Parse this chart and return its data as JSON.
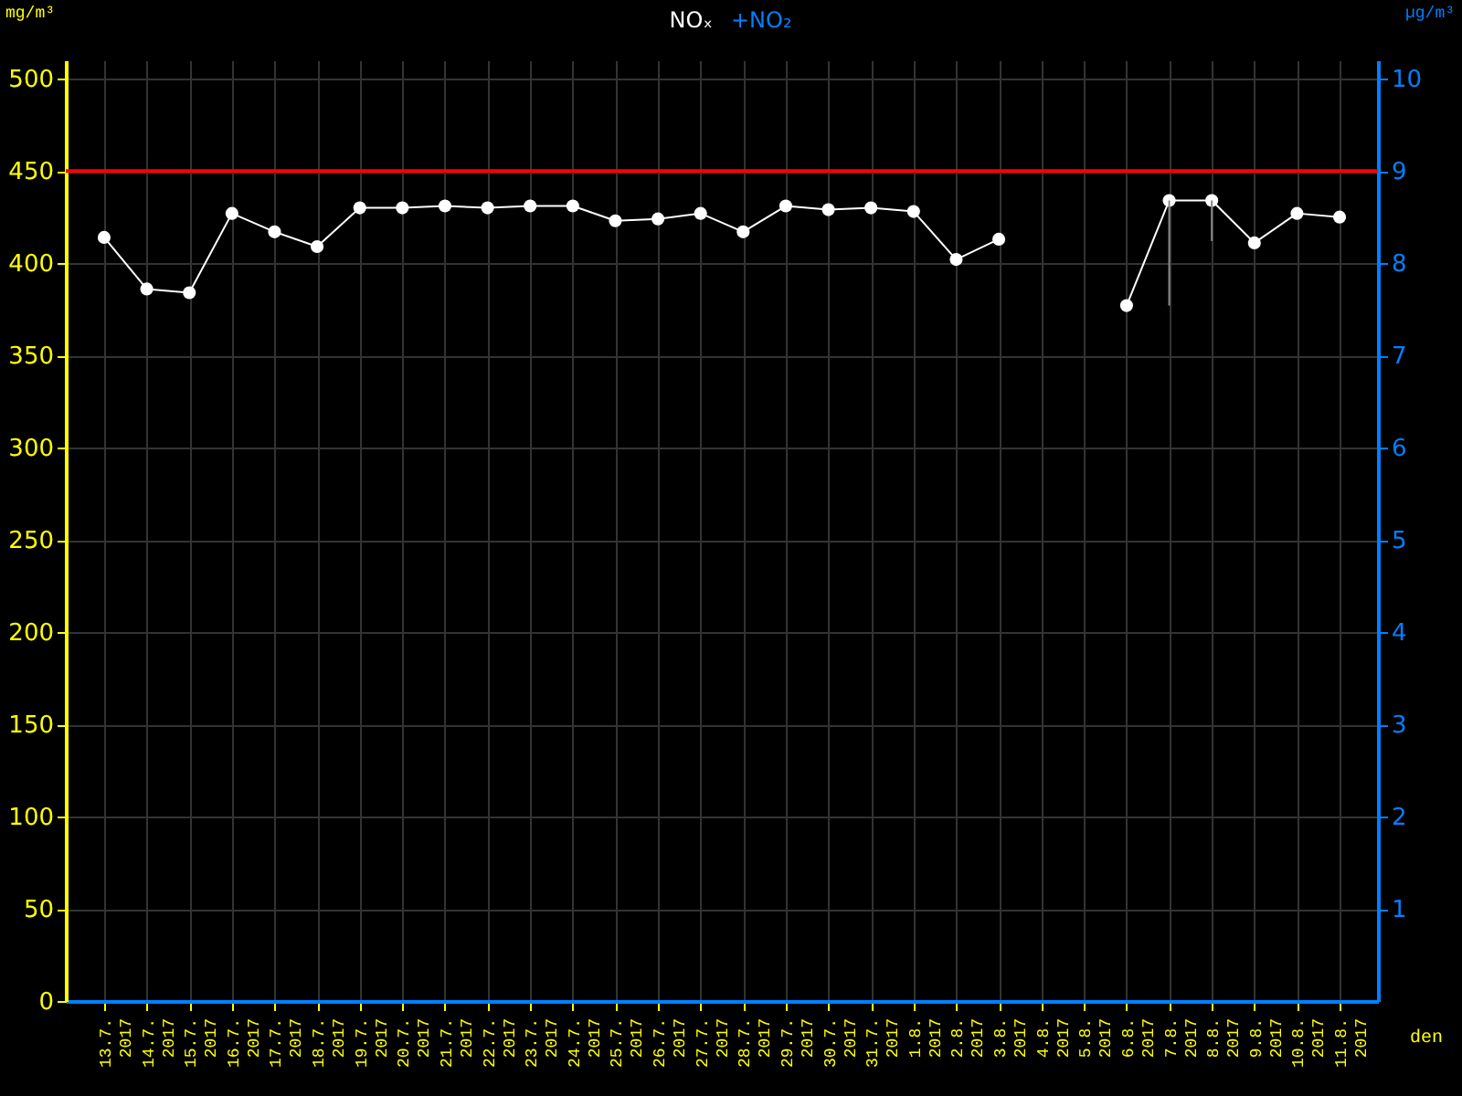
{
  "chart_data": {
    "type": "line",
    "title": "NOₓ",
    "subtitle": "+NO₂",
    "xlabel": "den",
    "ylabel": "mg/m³",
    "y2label": "µg/m³",
    "categories": [
      "13.7. 2017",
      "14.7. 2017",
      "15.7. 2017",
      "16.7. 2017",
      "17.7. 2017",
      "18.7. 2017",
      "19.7. 2017",
      "20.7. 2017",
      "21.7. 2017",
      "22.7. 2017",
      "23.7. 2017",
      "24.7. 2017",
      "25.7. 2017",
      "26.7. 2017",
      "27.7. 2017",
      "28.7. 2017",
      "29.7. 2017",
      "30.7. 2017",
      "31.7. 2017",
      "1.8. 2017",
      "2.8. 2017",
      "3.8. 2017",
      "4.8. 2017",
      "5.8. 2017",
      "6.8. 2017",
      "7.8. 2017",
      "8.8. 2017",
      "9.8. 2017",
      "10.8. 2017",
      "11.8. 2017"
    ],
    "series": [
      {
        "color": "#ffffff",
        "values": [
          414,
          386,
          384,
          427,
          417,
          409,
          430,
          430,
          431,
          430,
          431,
          431,
          423,
          424,
          427,
          417,
          431,
          429,
          430,
          428,
          402,
          413,
          null,
          null,
          377,
          434,
          434,
          411,
          427,
          425
        ],
        "errors": [
          null,
          null,
          null,
          null,
          null,
          null,
          null,
          null,
          null,
          null,
          null,
          null,
          null,
          null,
          null,
          null,
          null,
          null,
          null,
          null,
          null,
          null,
          null,
          null,
          null,
          [
            377,
            434
          ],
          [
            412,
            434
          ],
          null,
          null,
          null
        ]
      }
    ],
    "marker": "circle",
    "line_style": "solid",
    "grid": true,
    "ylim": [
      0,
      510
    ],
    "yticks": [
      0,
      50,
      100,
      150,
      200,
      250,
      300,
      350,
      400,
      450,
      500
    ],
    "y2lim": [
      0,
      10.2
    ],
    "y2ticks": [
      1,
      2,
      3,
      4,
      5,
      6,
      7,
      8,
      9,
      10
    ],
    "ref_lines": [
      {
        "axis": "y",
        "value": 450,
        "color": "#ff0000",
        "line_style": "solid"
      }
    ]
  }
}
